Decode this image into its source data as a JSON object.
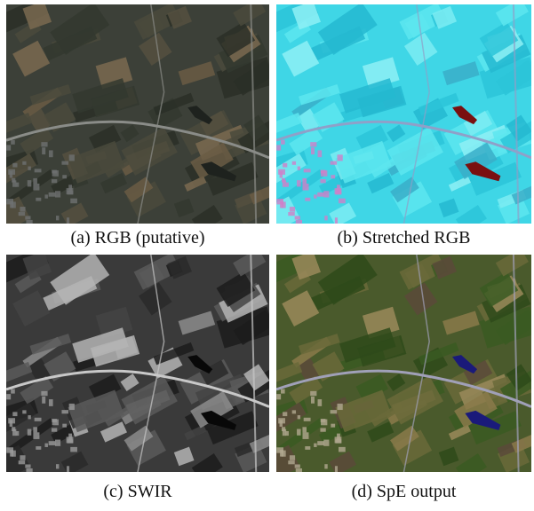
{
  "figure": {
    "panels": [
      {
        "caption": "(a) RGB (putative)"
      },
      {
        "caption": "(b) Stretched RGB"
      },
      {
        "caption": "(c) SWIR"
      },
      {
        "caption": "(d) SpE output"
      }
    ]
  }
}
